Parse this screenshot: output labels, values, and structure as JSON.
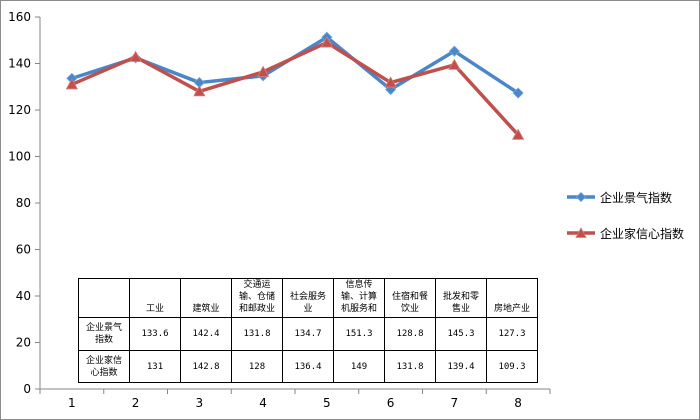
{
  "chart_data": {
    "type": "line",
    "x": [
      1,
      2,
      3,
      4,
      5,
      6,
      7,
      8
    ],
    "ylim": [
      0,
      160
    ],
    "yticks": [
      0,
      20,
      40,
      60,
      80,
      100,
      120,
      140,
      160
    ],
    "grid": false,
    "legend_position": "right",
    "series": [
      {
        "name": "企业景气指数",
        "color": "#4a86c8",
        "marker": "diamond",
        "values": [
          133.6,
          142.4,
          131.8,
          134.7,
          151.3,
          128.8,
          145.3,
          127.3
        ]
      },
      {
        "name": "企业家信心指数",
        "color": "#c0504d",
        "marker": "triangle",
        "values": [
          131,
          142.8,
          128,
          136.4,
          149,
          131.8,
          139.4,
          109.3
        ]
      }
    ],
    "table": {
      "categories": [
        [
          "工业"
        ],
        [
          "建筑业"
        ],
        [
          "交通运",
          "输、仓储",
          "和邮政业"
        ],
        [
          "社会服务",
          "业"
        ],
        [
          "信息传",
          "输、计算",
          "机服务和"
        ],
        [
          "住宿和餐",
          "饮业"
        ],
        [
          "批发和零",
          "售业"
        ],
        [
          "房地产业"
        ]
      ],
      "rows": [
        {
          "header": [
            "企业景气",
            "指数"
          ],
          "values": [
            "133.6",
            "142.4",
            "131.8",
            "134.7",
            "151.3",
            "128.8",
            "145.3",
            "127.3"
          ]
        },
        {
          "header": [
            "企业家信",
            "心指数"
          ],
          "values": [
            "131",
            "142.8",
            "128",
            "136.4",
            "149",
            "131.8",
            "139.4",
            "109.3"
          ]
        }
      ]
    }
  }
}
